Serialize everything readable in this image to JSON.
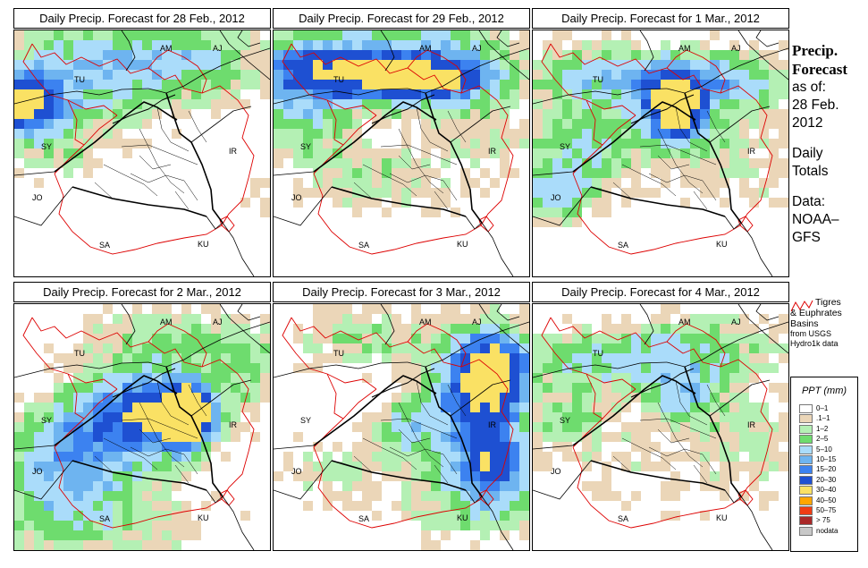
{
  "panels": [
    {
      "title": "Daily Precip. Forecast for  28 Feb., 2012",
      "pattern": "p1"
    },
    {
      "title": "Daily Precip. Forecast for  29 Feb., 2012",
      "pattern": "p2"
    },
    {
      "title": "Daily Precip. Forecast for  1 Mar., 2012",
      "pattern": "p3"
    },
    {
      "title": "Daily Precip. Forecast for  2 Mar., 2012",
      "pattern": "p4"
    },
    {
      "title": "Daily Precip. Forecast for  3 Mar., 2012",
      "pattern": "p5"
    },
    {
      "title": "Daily Precip. Forecast for  4 Mar., 2012",
      "pattern": "p6"
    }
  ],
  "map_labels": {
    "AM": "AM",
    "AJ": "AJ",
    "TU": "TU",
    "SY": "SY",
    "IR": "IR",
    "JO": "JO",
    "SA": "SA",
    "KU": "KU"
  },
  "sidebar": {
    "title_line1": "Precip.",
    "title_line2": "Forecast",
    "asof": "as of:",
    "date1": "28 Feb.",
    "date2": "2012",
    "daily": "Daily",
    "totals": "Totals",
    "data_label": "Data:",
    "source1": "NOAA–",
    "source2": "GFS"
  },
  "basin_legend": {
    "line1": "Tigres",
    "line2": "& Euphrates",
    "line3": "Basins",
    "line4": "from USGS",
    "line5": "Hydro1k data",
    "line_color": "#dd0000"
  },
  "legend": {
    "title": "PPT (mm)",
    "items": [
      {
        "label": "0–1",
        "color": "#ffffff"
      },
      {
        "label": ".1–1",
        "color": "#ebd6b8"
      },
      {
        "label": "1–2",
        "color": "#b4f0b4"
      },
      {
        "label": "2–5",
        "color": "#6edc6e"
      },
      {
        "label": "5–10",
        "color": "#aadcfa"
      },
      {
        "label": "10–15",
        "color": "#6eb4f0"
      },
      {
        "label": "15–20",
        "color": "#3c82f0"
      },
      {
        "label": "20–30",
        "color": "#1e50d2"
      },
      {
        "label": "30–40",
        "color": "#fae164"
      },
      {
        "label": "40–50",
        "color": "#ffa500"
      },
      {
        "label": "50–75",
        "color": "#f03c14"
      },
      {
        "label": "> 75",
        "color": "#aa2828"
      },
      {
        "label": "nodata",
        "color": "#c8c8c8"
      }
    ]
  }
}
